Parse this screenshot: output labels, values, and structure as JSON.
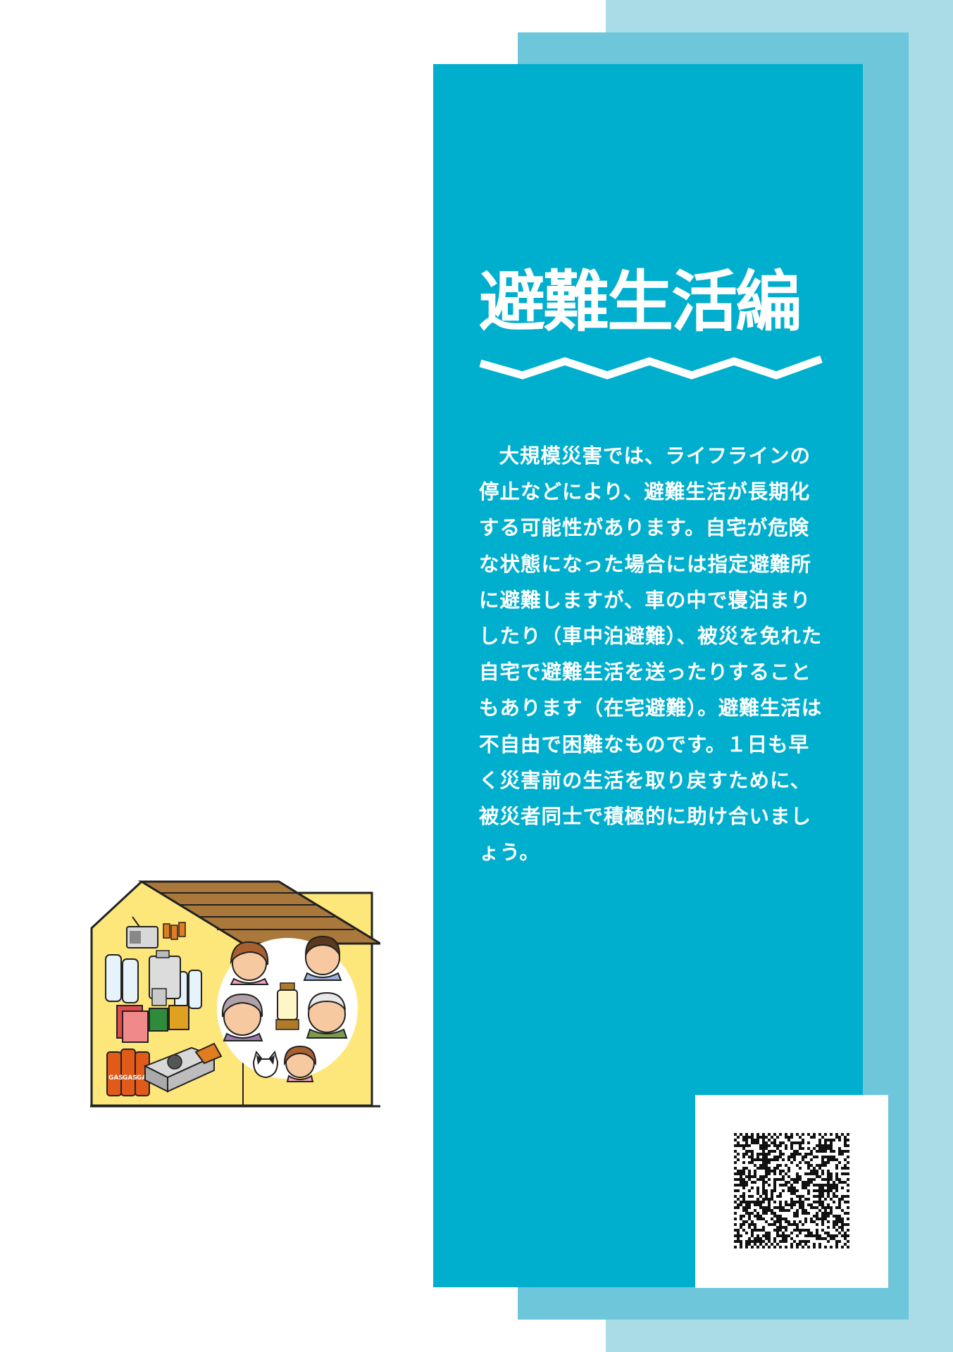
{
  "title": "避難生活編",
  "body": "大規模災害では、ライフラインの停止などにより、避難生活が長期化する可能性があります。自宅が危険な状態になった場合には指定避難所に避難しますが、車の中で寝泊まりしたり（車中泊避難）、被災を免れた自宅で避難生活を送ったりすることもあります（在宅避難）。避難生活は不自由で困難なものです。１日も早く災害前の生活を取り戻すために、被災者同士で積極的に助け合いましょう。",
  "illustration": {
    "can_label": "GAS"
  },
  "colors": {
    "panel": "#00afce",
    "stripe_mid": "#6ec6da",
    "stripe_light": "#a9dce6",
    "house_wall": "#fde77b",
    "roof": "#a9783a"
  },
  "icons": {
    "wave": "wave-divider-icon",
    "qr": "qr-code-icon",
    "house": "house-supplies-illustration"
  }
}
